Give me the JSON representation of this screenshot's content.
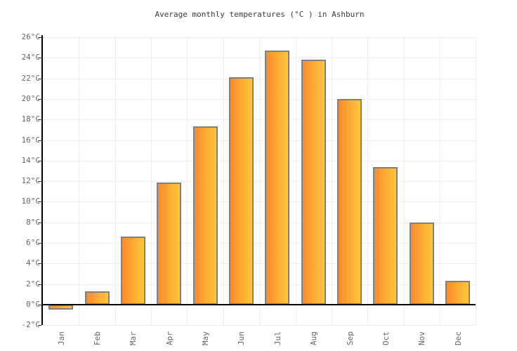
{
  "chart_data": {
    "type": "bar",
    "title": "Average monthly temperatures (°C ) in Ashburn",
    "categories": [
      "Jan",
      "Feb",
      "Mar",
      "Apr",
      "May",
      "Jun",
      "Jul",
      "Aug",
      "Sep",
      "Oct",
      "Nov",
      "Dec"
    ],
    "values": [
      -0.5,
      1.3,
      6.6,
      11.9,
      17.3,
      22.1,
      24.7,
      23.8,
      20.0,
      13.4,
      8.0,
      2.3
    ],
    "unit": "°C",
    "xlabel": "",
    "ylabel": "",
    "ylim": [
      -2,
      26
    ],
    "ytick_step": 2,
    "ytick_suffix": "°C",
    "grid": true,
    "legend": "none",
    "colors": {
      "bar_gradient_left": "#fb8c2a",
      "bar_gradient_right": "#fec73d",
      "bar_border": "#808080",
      "gridline": "#ededed",
      "axis": "#000000",
      "tick_label": "#666666",
      "title_text": "#3c3c3c",
      "background": "#ffffff"
    }
  }
}
